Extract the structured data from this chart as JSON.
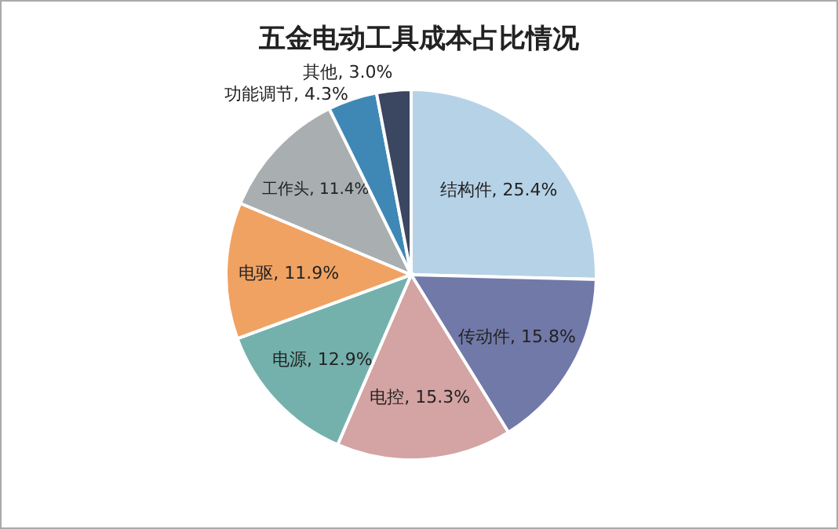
{
  "chart_data": {
    "type": "pie",
    "title": "五金电动工具成本占比情况",
    "categories": [
      "结构件",
      "传动件",
      "电控",
      "电源",
      "电驱",
      "工作头",
      "功能调节",
      "其他"
    ],
    "values": [
      25.4,
      15.8,
      15.3,
      12.9,
      11.9,
      11.4,
      4.3,
      3.0
    ],
    "value_labels": [
      "25.4%",
      "15.8%",
      "15.3%",
      "12.9%",
      "11.9%",
      "11.4%",
      "4.3%",
      "3.0%"
    ],
    "colors": [
      "#b6d2e6",
      "#7179a9",
      "#d4a3a3",
      "#74b1ad",
      "#f0a262",
      "#a9aeb1",
      "#3f88b6",
      "#3b4660"
    ],
    "legend": false
  }
}
